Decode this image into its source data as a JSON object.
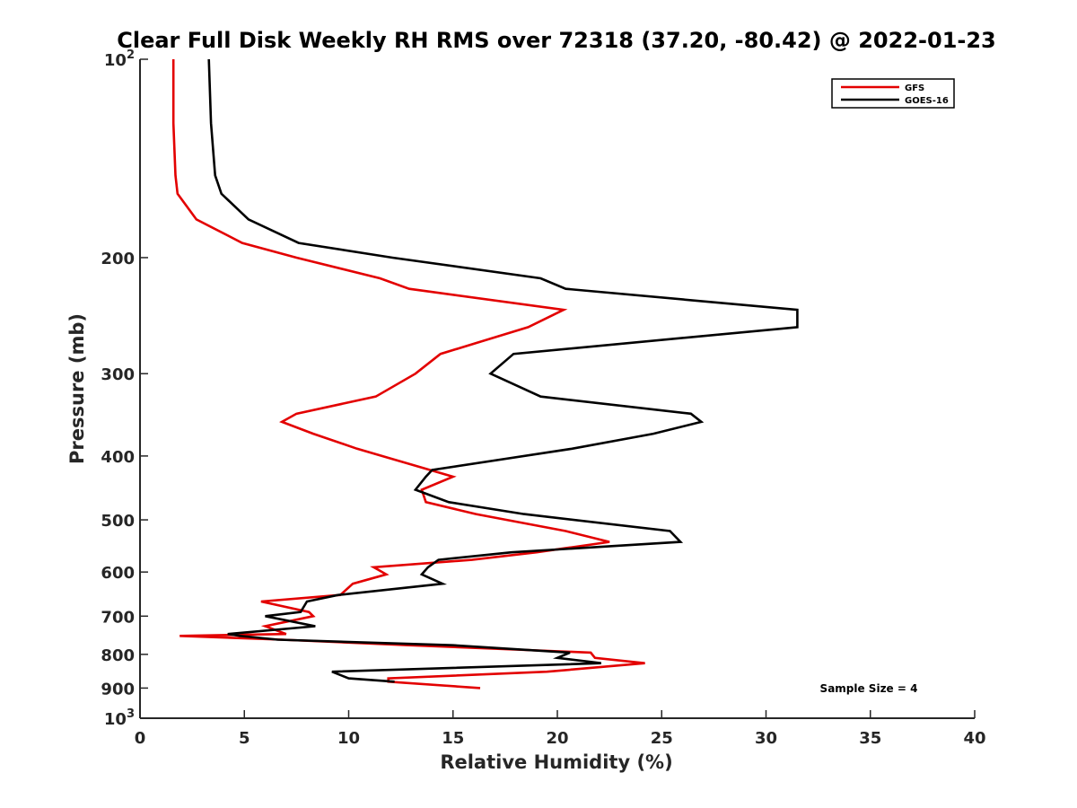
{
  "chart_data": {
    "type": "line",
    "title": "Clear Full Disk Weekly RH RMS over 72318 (37.20, -80.42) @ 2022-01-23",
    "xlabel": "Relative Humidity (%)",
    "ylabel": "Pressure (mb)",
    "xlim": [
      0,
      40
    ],
    "ylim": [
      100,
      1000
    ],
    "y_scale": "log",
    "y_reversed": true,
    "grid": false,
    "legend_position": "top-right",
    "annotation": "Sample Size = 4",
    "x_ticks": [
      "0",
      "5",
      "10",
      "15",
      "20",
      "25",
      "30",
      "35",
      "40"
    ],
    "y_ticks": [
      {
        "value": 100,
        "base": "10",
        "exp": "2"
      },
      {
        "value": 200,
        "label": "200"
      },
      {
        "value": 300,
        "label": "300"
      },
      {
        "value": 400,
        "label": "400"
      },
      {
        "value": 500,
        "label": "500"
      },
      {
        "value": 600,
        "label": "600"
      },
      {
        "value": 700,
        "label": "700"
      },
      {
        "value": 800,
        "label": "800"
      },
      {
        "value": 900,
        "label": "900"
      },
      {
        "value": 1000,
        "base": "10",
        "exp": "3"
      }
    ],
    "series": [
      {
        "name": "GFS",
        "color": "#e30000",
        "points": [
          [
            1.6,
            100
          ],
          [
            1.6,
            125
          ],
          [
            1.7,
            150
          ],
          [
            1.8,
            160
          ],
          [
            2.7,
            175
          ],
          [
            4.9,
            190
          ],
          [
            7.5,
            200
          ],
          [
            11.5,
            215
          ],
          [
            12.9,
            223
          ],
          [
            20.3,
            240
          ],
          [
            18.6,
            255
          ],
          [
            14.4,
            280
          ],
          [
            13.2,
            300
          ],
          [
            11.3,
            325
          ],
          [
            7.5,
            345
          ],
          [
            6.8,
            355
          ],
          [
            8.3,
            370
          ],
          [
            10.4,
            390
          ],
          [
            13.9,
            420
          ],
          [
            15.0,
            430
          ],
          [
            13.5,
            450
          ],
          [
            13.7,
            470
          ],
          [
            16.1,
            490
          ],
          [
            20.4,
            520
          ],
          [
            22.5,
            540
          ],
          [
            19.0,
            560
          ],
          [
            15.9,
            575
          ],
          [
            11.2,
            590
          ],
          [
            11.8,
            605
          ],
          [
            10.2,
            625
          ],
          [
            9.6,
            650
          ],
          [
            5.8,
            665
          ],
          [
            8.1,
            690
          ],
          [
            8.3,
            700
          ],
          [
            6.0,
            725
          ],
          [
            7.0,
            745
          ],
          [
            1.9,
            750
          ],
          [
            6.8,
            760
          ],
          [
            12.9,
            775
          ],
          [
            21.6,
            795
          ],
          [
            21.8,
            810
          ],
          [
            24.2,
            825
          ],
          [
            19.5,
            850
          ],
          [
            11.9,
            870
          ],
          [
            11.9,
            880
          ],
          [
            16.3,
            900
          ]
        ]
      },
      {
        "name": "GOES-16",
        "color": "#000000",
        "points": [
          [
            3.3,
            100
          ],
          [
            3.4,
            125
          ],
          [
            3.6,
            150
          ],
          [
            3.9,
            160
          ],
          [
            5.2,
            175
          ],
          [
            7.6,
            190
          ],
          [
            12.1,
            200
          ],
          [
            19.2,
            215
          ],
          [
            20.4,
            223
          ],
          [
            31.5,
            240
          ],
          [
            31.5,
            255
          ],
          [
            17.9,
            280
          ],
          [
            16.8,
            300
          ],
          [
            19.2,
            325
          ],
          [
            26.4,
            345
          ],
          [
            26.9,
            355
          ],
          [
            24.6,
            370
          ],
          [
            20.7,
            390
          ],
          [
            14.0,
            420
          ],
          [
            13.7,
            430
          ],
          [
            13.2,
            450
          ],
          [
            14.8,
            470
          ],
          [
            18.4,
            490
          ],
          [
            25.4,
            520
          ],
          [
            25.9,
            540
          ],
          [
            17.8,
            560
          ],
          [
            14.3,
            575
          ],
          [
            13.8,
            590
          ],
          [
            13.5,
            605
          ],
          [
            14.5,
            625
          ],
          [
            9.5,
            650
          ],
          [
            8.0,
            665
          ],
          [
            7.7,
            690
          ],
          [
            6.0,
            700
          ],
          [
            8.4,
            725
          ],
          [
            4.2,
            745
          ],
          [
            4.8,
            750
          ],
          [
            6.6,
            760
          ],
          [
            15.0,
            775
          ],
          [
            20.6,
            795
          ],
          [
            20.0,
            810
          ],
          [
            22.1,
            825
          ],
          [
            9.2,
            850
          ],
          [
            10.0,
            870
          ],
          [
            12.2,
            880
          ]
        ]
      }
    ]
  }
}
